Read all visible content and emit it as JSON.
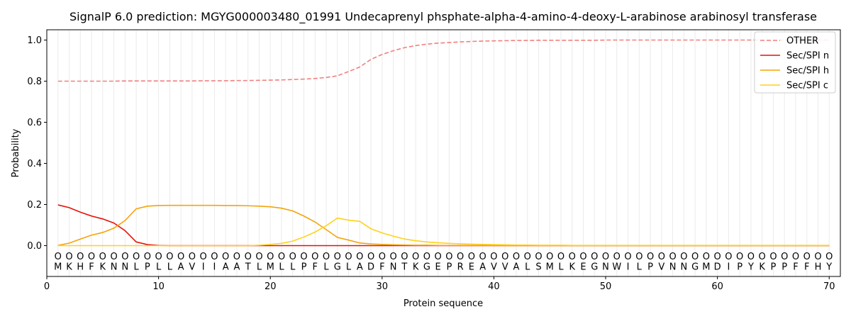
{
  "chart_data": {
    "type": "line",
    "title": "SignalP 6.0 prediction: MGYG000003480_01991 Undecaprenyl phsphate-alpha-4-amino-4-deoxy-L-arabinose arabinosyl transferase",
    "xlabel": "Protein sequence",
    "ylabel": "Probability",
    "xlim": [
      0,
      71
    ],
    "ylim": [
      -0.15,
      1.05
    ],
    "xticks": [
      0,
      10,
      20,
      30,
      40,
      50,
      60,
      70
    ],
    "yticks": [
      0.0,
      0.2,
      0.4,
      0.6,
      0.8,
      1.0
    ],
    "grid": "vertical lines at each residue",
    "legend_position": "top-right",
    "sequence": [
      "M",
      "K",
      "H",
      "F",
      "K",
      "N",
      "N",
      "L",
      "P",
      "L",
      "L",
      "A",
      "V",
      "I",
      "I",
      "A",
      "A",
      "T",
      "L",
      "M",
      "L",
      "L",
      "P",
      "F",
      "L",
      "G",
      "L",
      "A",
      "D",
      "F",
      "N",
      "T",
      "K",
      "G",
      "E",
      "P",
      "R",
      "E",
      "A",
      "V",
      "V",
      "A",
      "L",
      "S",
      "M",
      "L",
      "K",
      "E",
      "G",
      "N",
      "W",
      "I",
      "L",
      "P",
      "V",
      "N",
      "N",
      "G",
      "M",
      "D",
      "I",
      "P",
      "Y",
      "K",
      "P",
      "P",
      "F",
      "F",
      "H",
      "Y"
    ],
    "residue_marker": "O",
    "x": [
      1,
      2,
      3,
      4,
      5,
      6,
      7,
      8,
      9,
      10,
      11,
      12,
      13,
      14,
      15,
      16,
      17,
      18,
      19,
      20,
      21,
      22,
      23,
      24,
      25,
      26,
      27,
      28,
      29,
      30,
      31,
      32,
      33,
      34,
      35,
      36,
      37,
      38,
      39,
      40,
      41,
      42,
      43,
      44,
      45,
      46,
      47,
      48,
      49,
      50,
      51,
      52,
      53,
      54,
      55,
      56,
      57,
      58,
      59,
      60,
      61,
      62,
      63,
      64,
      65,
      66,
      67,
      68,
      69,
      70
    ],
    "series": [
      {
        "name": "OTHER",
        "color": "#f08080",
        "dash": true,
        "values": [
          0.8,
          0.8,
          0.8,
          0.8,
          0.8,
          0.8,
          0.801,
          0.801,
          0.801,
          0.801,
          0.801,
          0.801,
          0.801,
          0.802,
          0.802,
          0.802,
          0.803,
          0.803,
          0.804,
          0.805,
          0.806,
          0.808,
          0.81,
          0.813,
          0.818,
          0.826,
          0.847,
          0.869,
          0.906,
          0.93,
          0.948,
          0.963,
          0.973,
          0.98,
          0.985,
          0.988,
          0.991,
          0.993,
          0.995,
          0.996,
          0.997,
          0.998,
          0.998,
          0.999,
          0.999,
          0.999,
          0.999,
          0.999,
          0.999,
          1.0,
          1.0,
          1.0,
          1.0,
          1.0,
          1.0,
          1.0,
          1.0,
          1.0,
          1.0,
          1.0,
          1.0,
          1.0,
          1.0,
          1.0,
          1.0,
          1.0,
          1.0,
          1.0,
          1.0,
          1.0
        ]
      },
      {
        "name": "Sec/SPI n",
        "color": "#e3120b",
        "dash": false,
        "values": [
          0.198,
          0.185,
          0.163,
          0.144,
          0.13,
          0.11,
          0.073,
          0.018,
          0.005,
          0.001,
          0.0,
          0.0,
          0.0,
          0.0,
          0.0,
          0.0,
          0.0,
          0.0,
          0.0,
          0.0,
          0.0,
          0.0,
          0.0,
          0.0,
          0.0,
          0.0,
          0.0,
          0.0,
          0.0,
          0.0,
          0.0,
          0.0,
          0.0,
          0.0,
          0.0,
          0.0,
          0.0,
          0.0,
          0.0,
          0.0,
          0.0,
          0.0,
          0.0,
          0.0,
          0.0,
          0.0,
          0.0,
          0.0,
          0.0,
          0.0,
          0.0,
          0.0,
          0.0,
          0.0,
          0.0,
          0.0,
          0.0,
          0.0,
          0.0,
          0.0,
          0.0,
          0.0,
          0.0,
          0.0,
          0.0,
          0.0,
          0.0,
          0.0,
          0.0,
          0.0
        ]
      },
      {
        "name": "Sec/SPI h",
        "color": "#f5a30a",
        "dash": false,
        "values": [
          0.001,
          0.012,
          0.032,
          0.051,
          0.064,
          0.085,
          0.122,
          0.179,
          0.192,
          0.195,
          0.196,
          0.196,
          0.196,
          0.196,
          0.196,
          0.195,
          0.195,
          0.194,
          0.192,
          0.189,
          0.182,
          0.169,
          0.144,
          0.115,
          0.078,
          0.04,
          0.027,
          0.013,
          0.008,
          0.006,
          0.004,
          0.003,
          0.002,
          0.002,
          0.001,
          0.001,
          0.001,
          0.001,
          0.001,
          0.001,
          0.0,
          0.0,
          0.0,
          0.0,
          0.0,
          0.0,
          0.0,
          0.0,
          0.0,
          0.0,
          0.0,
          0.0,
          0.0,
          0.0,
          0.0,
          0.0,
          0.0,
          0.0,
          0.0,
          0.0,
          0.0,
          0.0,
          0.0,
          0.0,
          0.0,
          0.0,
          0.0,
          0.0,
          0.0,
          0.0
        ]
      },
      {
        "name": "Sec/SPI c",
        "color": "#ffd21a",
        "dash": false,
        "values": [
          0.0,
          0.0,
          0.0,
          0.0,
          0.0,
          0.0,
          0.0,
          0.0,
          0.0,
          0.0,
          0.0,
          0.0,
          0.0,
          0.0,
          0.0,
          0.0,
          0.0,
          0.0,
          0.002,
          0.006,
          0.011,
          0.022,
          0.042,
          0.066,
          0.097,
          0.134,
          0.124,
          0.118,
          0.082,
          0.062,
          0.046,
          0.032,
          0.024,
          0.018,
          0.014,
          0.011,
          0.009,
          0.007,
          0.006,
          0.005,
          0.004,
          0.003,
          0.003,
          0.002,
          0.002,
          0.002,
          0.001,
          0.001,
          0.001,
          0.001,
          0.001,
          0.001,
          0.001,
          0.001,
          0.001,
          0.001,
          0.001,
          0.001,
          0.001,
          0.001,
          0.001,
          0.001,
          0.001,
          0.001,
          0.001,
          0.001,
          0.001,
          0.001,
          0.001,
          0.001
        ]
      }
    ]
  }
}
